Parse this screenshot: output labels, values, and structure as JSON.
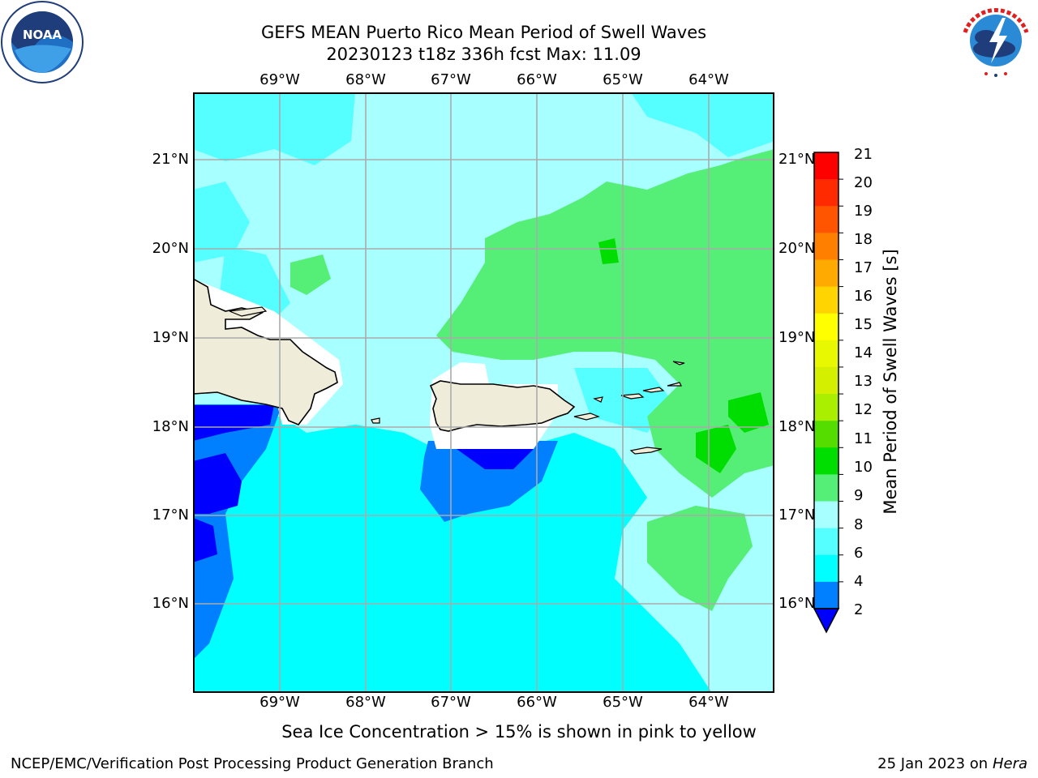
{
  "title": {
    "line1": "GEFS MEAN Puerto Rico Mean Period of Swell Waves",
    "line2": "20230123 t18z 336h fcst   Max: 11.09"
  },
  "map": {
    "lon_labels": [
      "69°W",
      "68°W",
      "67°W",
      "66°W",
      "65°W",
      "64°W"
    ],
    "lat_labels": [
      "21°N",
      "20°N",
      "19°N",
      "18°N",
      "17°N",
      "16°N"
    ]
  },
  "colorbar": {
    "label": "Mean Period of Swell Waves [s]",
    "ticks": [
      "21",
      "20",
      "19",
      "18",
      "17",
      "16",
      "15",
      "14",
      "13",
      "12",
      "11",
      "10",
      "9",
      "8",
      "6",
      "4",
      "2"
    ],
    "colors": [
      "#ff0000",
      "#ff2a00",
      "#ff5500",
      "#ff8000",
      "#ffaa00",
      "#ffd400",
      "#ffff00",
      "#e8f800",
      "#d4f000",
      "#aaee00",
      "#55dd00",
      "#00dd00",
      "#55ee77",
      "#a8ffff",
      "#55ffff",
      "#00ffff",
      "#0080ff",
      "#0000ff"
    ]
  },
  "logos": {
    "noaa": "NOAA",
    "noaa_ring": "NATIONAL OCEANIC AND ATMOSPHERIC ADMINISTRATION · U.S. DEPARTMENT OF COMMERCE",
    "nws_ring": "NATIONAL WEATHER SERVICE"
  },
  "footer": {
    "ice_note": "Sea Ice Concentration > 15% is shown in pink to yellow",
    "branch": "NCEP/EMC/Verification Post Processing Product Generation Branch",
    "date": "25 Jan 2023 on ",
    "host": "Hera"
  }
}
